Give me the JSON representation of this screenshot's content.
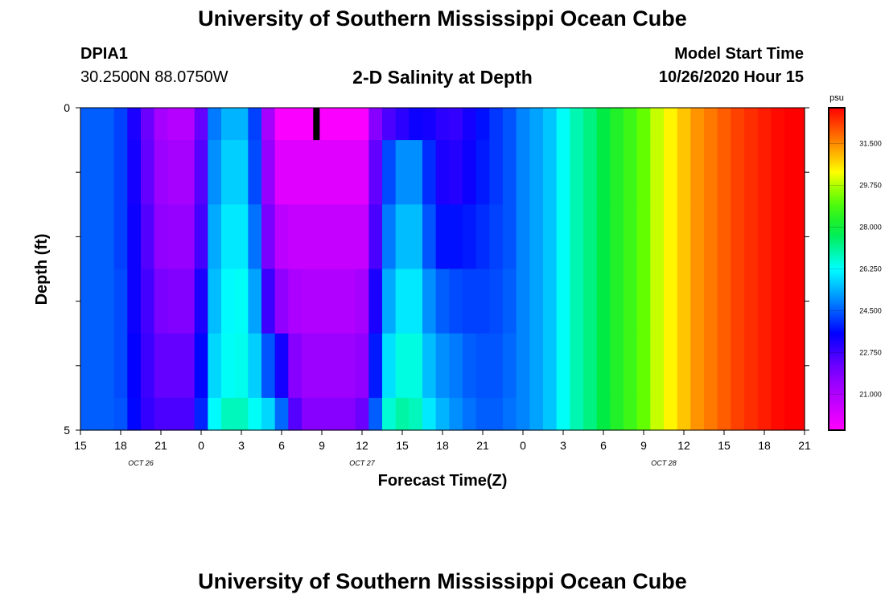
{
  "header": {
    "title": "University of Southern Mississippi Ocean Cube",
    "station_id": "DPIA1",
    "station_coords": "30.2500N 88.0750W",
    "subtitle": "2-D Salinity at Depth",
    "model_start_label": "Model Start Time",
    "model_start_value": "10/26/2020 Hour 15"
  },
  "footer": {
    "title": "University of Southern Mississippi Ocean Cube"
  },
  "chart_data": {
    "type": "heatmap",
    "title": "2-D Salinity at Depth",
    "xlabel": "Forecast Time(Z)",
    "ylabel": "Depth (ft)",
    "x_unit": "forecast hour since 10/26/2020 15Z",
    "x_range": [
      0,
      54
    ],
    "xticks": [
      {
        "hour": 0,
        "label": "15"
      },
      {
        "hour": 3,
        "label": "18"
      },
      {
        "hour": 6,
        "label": "21"
      },
      {
        "hour": 9,
        "label": "0"
      },
      {
        "hour": 12,
        "label": "3"
      },
      {
        "hour": 15,
        "label": "6"
      },
      {
        "hour": 18,
        "label": "9"
      },
      {
        "hour": 21,
        "label": "12"
      },
      {
        "hour": 24,
        "label": "15"
      },
      {
        "hour": 27,
        "label": "18"
      },
      {
        "hour": 30,
        "label": "21"
      },
      {
        "hour": 33,
        "label": "0"
      },
      {
        "hour": 36,
        "label": "3"
      },
      {
        "hour": 39,
        "label": "6"
      },
      {
        "hour": 42,
        "label": "9"
      },
      {
        "hour": 45,
        "label": "12"
      },
      {
        "hour": 48,
        "label": "15"
      },
      {
        "hour": 51,
        "label": "18"
      },
      {
        "hour": 54,
        "label": "21"
      }
    ],
    "date_labels": [
      {
        "hour": 4.5,
        "label": "OCT 26"
      },
      {
        "hour": 21,
        "label": "OCT 27"
      },
      {
        "hour": 43.5,
        "label": "OCT 28"
      }
    ],
    "y_range": [
      0,
      5
    ],
    "y_reversed": true,
    "yticks": [
      0,
      1,
      2,
      3,
      4,
      5
    ],
    "ytick_labels": {
      "0": "0",
      "5": "5"
    },
    "depth_levels": [
      0,
      1,
      2,
      3,
      4,
      5
    ],
    "column_hours": [
      0,
      1,
      2,
      3,
      4,
      5,
      6,
      7,
      8,
      9,
      10,
      11,
      12,
      13,
      14,
      15,
      16,
      17,
      18,
      19,
      20,
      21,
      22,
      23,
      24,
      25,
      26,
      27,
      28,
      29,
      30,
      31,
      32,
      33,
      34,
      35,
      36,
      37,
      38,
      39,
      40,
      41,
      42,
      43,
      44,
      45,
      46,
      47,
      48,
      49,
      50,
      51,
      52,
      53,
      54
    ],
    "colorbar": {
      "unit": "psu",
      "range": [
        19.5,
        33.0
      ],
      "tick_values": [
        21.0,
        22.75,
        24.5,
        26.25,
        28.0,
        29.75,
        31.5
      ],
      "tick_labels": [
        "21.000",
        "22.750",
        "24.500",
        "26.250",
        "28.000",
        "29.750",
        "31.500"
      ]
    },
    "salinity_psu": [
      [
        24.5,
        24.5,
        24.5,
        24.2,
        23.2,
        22.2,
        21.2,
        20.9,
        20.9,
        22.3,
        24.8,
        25.4,
        25.4,
        24.2,
        21.2,
        19.6,
        19.6,
        19.6,
        19.6,
        19.6,
        19.6,
        19.6,
        21.8,
        22.6,
        23.0,
        23.4,
        23.3,
        23.0,
        22.9,
        23.3,
        23.7,
        24.1,
        24.4,
        24.9,
        25.2,
        25.6,
        26.3,
        26.9,
        27.3,
        27.8,
        28.3,
        28.7,
        29.2,
        29.9,
        30.4,
        30.9,
        31.4,
        31.7,
        32.0,
        32.3,
        32.5,
        32.7,
        32.9,
        33.0,
        33.0
      ],
      [
        24.5,
        24.5,
        24.5,
        24.2,
        23.3,
        22.3,
        21.4,
        21.2,
        21.2,
        22.5,
        25.0,
        25.7,
        25.7,
        24.3,
        21.5,
        20.1,
        20.1,
        20.1,
        20.1,
        20.1,
        20.1,
        20.1,
        22.3,
        24.3,
        25.0,
        25.0,
        24.0,
        23.2,
        23.1,
        23.4,
        23.8,
        24.1,
        24.4,
        24.9,
        25.2,
        25.6,
        26.3,
        26.9,
        27.3,
        27.8,
        28.3,
        28.7,
        29.2,
        29.9,
        30.4,
        30.9,
        31.4,
        31.7,
        32.0,
        32.3,
        32.5,
        32.7,
        32.9,
        33.0,
        33.0
      ],
      [
        24.5,
        24.5,
        24.5,
        24.2,
        23.4,
        22.5,
        21.6,
        21.5,
        21.5,
        22.7,
        25.3,
        26.0,
        26.0,
        24.7,
        22.0,
        20.8,
        20.6,
        20.6,
        20.6,
        20.6,
        20.6,
        20.6,
        22.6,
        24.8,
        25.5,
        25.5,
        24.4,
        23.7,
        23.7,
        23.8,
        24.0,
        24.2,
        24.4,
        24.9,
        25.2,
        25.6,
        26.3,
        26.9,
        27.3,
        27.8,
        28.3,
        28.7,
        29.2,
        29.9,
        30.4,
        30.9,
        31.4,
        31.7,
        32.0,
        32.3,
        32.5,
        32.7,
        32.9,
        33.0,
        33.0
      ],
      [
        24.5,
        24.5,
        24.5,
        24.3,
        23.4,
        22.7,
        22.0,
        21.9,
        21.9,
        23.2,
        25.5,
        26.2,
        26.3,
        25.2,
        22.8,
        21.6,
        21.1,
        21.0,
        21.0,
        21.0,
        21.0,
        21.2,
        23.2,
        25.3,
        26.0,
        26.0,
        25.0,
        24.5,
        24.3,
        24.2,
        24.2,
        24.3,
        24.5,
        24.9,
        25.2,
        25.6,
        26.3,
        26.9,
        27.3,
        27.8,
        28.3,
        28.7,
        29.2,
        29.9,
        30.4,
        30.9,
        31.4,
        31.7,
        32.0,
        32.3,
        32.5,
        32.7,
        32.9,
        33.0,
        33.0
      ],
      [
        24.5,
        24.5,
        24.5,
        24.3,
        23.5,
        22.8,
        22.3,
        22.3,
        22.3,
        23.6,
        25.8,
        26.3,
        26.4,
        25.7,
        24.4,
        23.3,
        21.8,
        21.4,
        21.4,
        21.4,
        21.4,
        21.6,
        23.8,
        25.9,
        26.5,
        26.5,
        25.5,
        25.0,
        24.8,
        24.5,
        24.4,
        24.4,
        24.6,
        24.9,
        25.2,
        25.6,
        26.3,
        26.9,
        27.3,
        27.8,
        28.3,
        28.7,
        29.2,
        29.9,
        30.4,
        30.9,
        31.4,
        31.7,
        32.0,
        32.3,
        32.5,
        32.7,
        32.9,
        33.0,
        33.0
      ],
      [
        24.5,
        24.5,
        24.5,
        24.4,
        23.6,
        22.9,
        22.6,
        22.6,
        22.6,
        23.9,
        26.2,
        26.8,
        26.8,
        26.3,
        25.8,
        24.6,
        22.5,
        21.8,
        21.8,
        21.8,
        21.8,
        22.2,
        24.5,
        26.6,
        27.0,
        26.8,
        26.0,
        25.4,
        25.0,
        24.7,
        24.5,
        24.5,
        24.7,
        24.9,
        25.2,
        25.6,
        26.3,
        26.9,
        27.3,
        27.8,
        28.3,
        28.7,
        29.2,
        29.9,
        30.4,
        30.9,
        31.4,
        31.7,
        32.0,
        32.3,
        32.5,
        32.7,
        32.9,
        33.0,
        33.0
      ]
    ],
    "missing_marks": [
      {
        "label": "data gap",
        "hour": 17.6,
        "depth_from": 0,
        "depth_to": 0.5
      }
    ]
  }
}
